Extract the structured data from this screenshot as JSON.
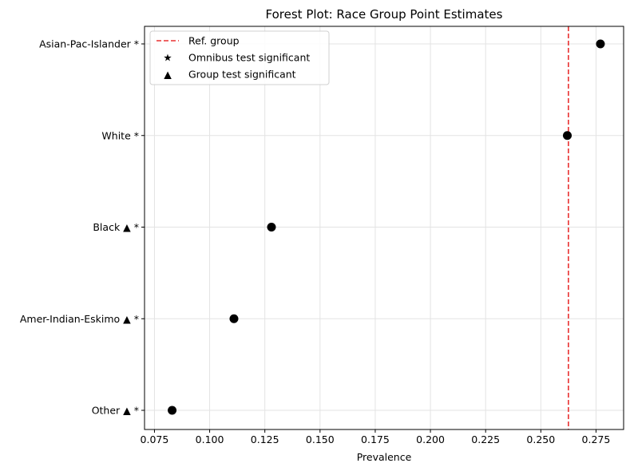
{
  "chart_data": {
    "type": "scatter",
    "title": "Forest Plot: Race Group Point Estimates",
    "xlabel": "Prevalence",
    "ylabel": "",
    "xlim": [
      0.0705,
      0.2875
    ],
    "x_ticks": [
      0.075,
      0.1,
      0.125,
      0.15,
      0.175,
      0.2,
      0.225,
      0.25,
      0.275
    ],
    "x_tick_labels": [
      "0.075",
      "0.100",
      "0.125",
      "0.150",
      "0.175",
      "0.200",
      "0.225",
      "0.250",
      "0.275"
    ],
    "categories": [
      "Asian-Pac-Islander *",
      "White *",
      "Black ▲ *",
      "Amer-Indian-Eskimo ▲ *",
      "Other ▲ *"
    ],
    "values": [
      0.277,
      0.262,
      0.128,
      0.111,
      0.083
    ],
    "reference_line": {
      "x": 0.2625,
      "color": "#e83030",
      "style": "dashed"
    },
    "grid": true,
    "legend": {
      "placement": "top-left",
      "entries": [
        {
          "label": "Ref. group",
          "marker": "dashed-line",
          "color": "#e83030"
        },
        {
          "label": "Omnibus test significant",
          "marker": "★",
          "color": "#000000"
        },
        {
          "label": "Group test significant",
          "marker": "▲",
          "color": "#000000"
        }
      ]
    },
    "point_color": "#000000"
  }
}
